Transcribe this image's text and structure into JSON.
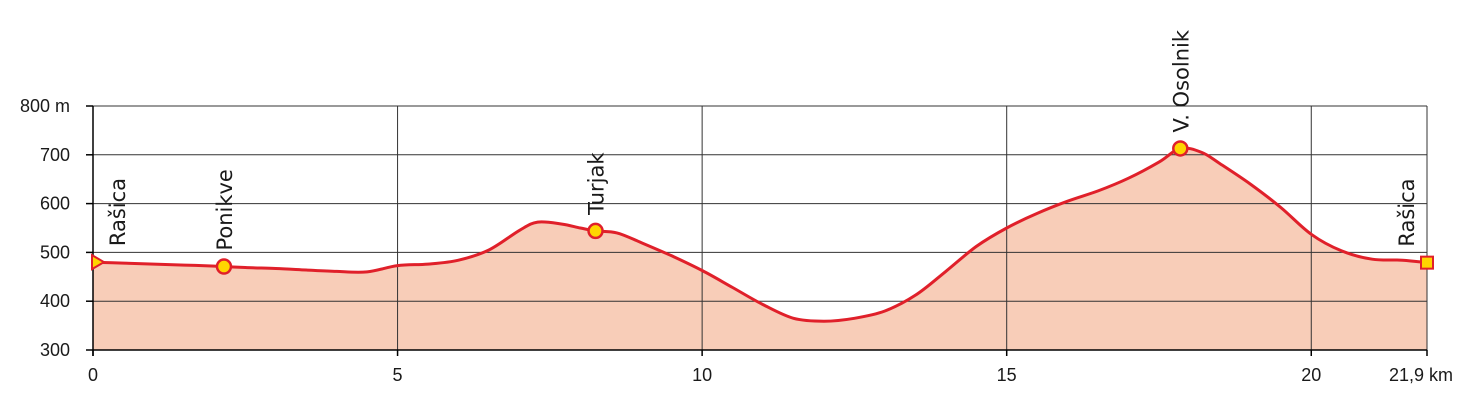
{
  "chart_data": {
    "type": "area",
    "xlabel": "",
    "ylabel": "",
    "x_unit": "km",
    "y_unit": "m",
    "xlim": [
      0,
      21.9
    ],
    "ylim": [
      300,
      800
    ],
    "x_ticks": [
      {
        "value": 0,
        "label": "0"
      },
      {
        "value": 5,
        "label": "5"
      },
      {
        "value": 10,
        "label": "10"
      },
      {
        "value": 15,
        "label": "15"
      },
      {
        "value": 20,
        "label": "20"
      },
      {
        "value": 21.9,
        "label": "21,9 km"
      }
    ],
    "y_ticks": [
      {
        "value": 300,
        "label": "300"
      },
      {
        "value": 400,
        "label": "400"
      },
      {
        "value": 500,
        "label": "500"
      },
      {
        "value": 600,
        "label": "600"
      },
      {
        "value": 700,
        "label": "700"
      },
      {
        "value": 800,
        "label": "800 m"
      }
    ],
    "grid": true,
    "colors": {
      "line": "#e0202a",
      "fill": "#f8cdb8",
      "marker": "#ffd500",
      "grid": "#333333"
    },
    "series": [
      {
        "x": [
          0,
          0.5,
          1,
          1.5,
          2,
          2.15,
          2.5,
          3,
          3.5,
          4,
          4.5,
          5,
          5.5,
          6,
          6.5,
          7,
          7.3,
          7.7,
          8,
          8.25,
          8.6,
          9,
          9.5,
          10,
          10.5,
          11,
          11.5,
          12,
          12.5,
          13,
          13.5,
          14,
          14.5,
          15,
          15.5,
          16,
          16.5,
          17,
          17.5,
          17.85,
          18.2,
          18.5,
          19,
          19.5,
          20,
          20.5,
          21,
          21.5,
          21.9
        ],
        "y": [
          480,
          478,
          476,
          474,
          472,
          471,
          469,
          467,
          464,
          461,
          460,
          473,
          476,
          484,
          505,
          545,
          562,
          558,
          550,
          544,
          540,
          520,
          493,
          463,
          428,
          393,
          365,
          359,
          365,
          380,
          412,
          461,
          512,
          550,
          580,
          605,
          626,
          652,
          685,
          713,
          705,
          682,
          640,
          592,
          537,
          503,
          486,
          484,
          479
        ]
      }
    ],
    "waypoints": [
      {
        "x": 0,
        "y": 480,
        "label": "Rašica",
        "marker": "triangle"
      },
      {
        "x": 2.15,
        "y": 471,
        "label": "Ponikve",
        "marker": "circle"
      },
      {
        "x": 8.25,
        "y": 544,
        "label": "Turjak",
        "marker": "circle"
      },
      {
        "x": 17.85,
        "y": 713,
        "label": "V. Osolnik",
        "marker": "circle"
      },
      {
        "x": 21.9,
        "y": 479,
        "label": "Rašica",
        "marker": "square"
      }
    ]
  }
}
